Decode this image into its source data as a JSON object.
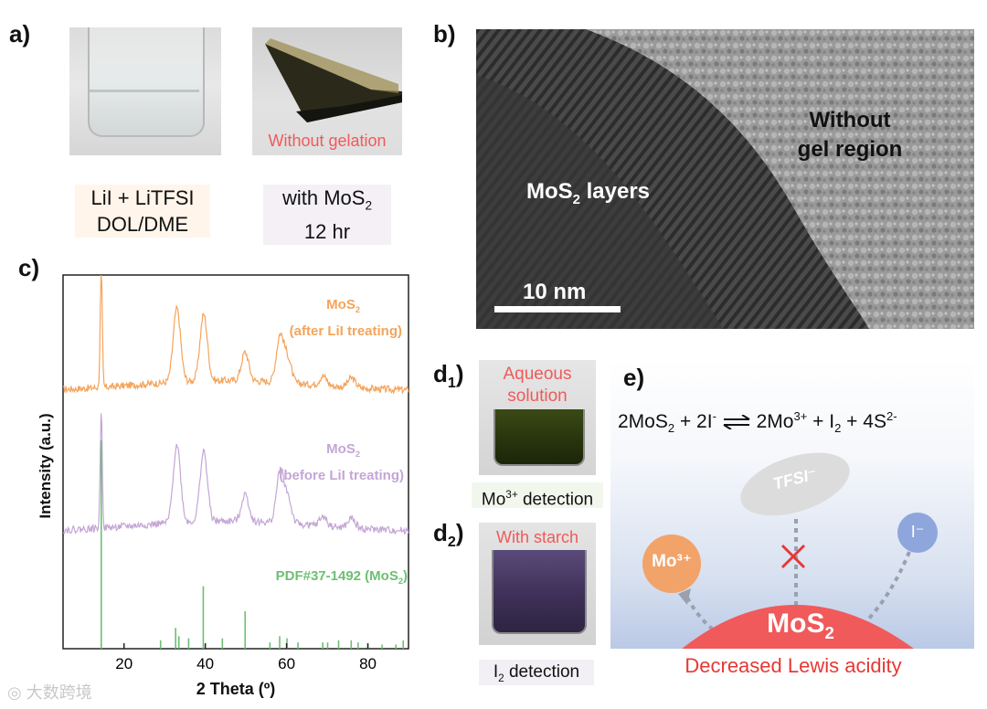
{
  "panels": {
    "a": {
      "label": "a)",
      "vial1_caption_line1": "LiI + LiTFSI",
      "vial1_caption_line2": "DOL/DME",
      "vial2_overlay": "Without gelation",
      "vial2_caption_prefix": "with MoS",
      "vial2_caption_sub": "2",
      "vial2_caption_line2": "12 hr"
    },
    "b": {
      "label": "b)",
      "region_label_line1": "Without",
      "region_label_line2": "gel region",
      "layers_prefix": "MoS",
      "layers_sub": "2",
      "layers_suffix": " layers",
      "scale_bar": "10 nm"
    },
    "c": {
      "label": "c)"
    },
    "d1": {
      "label_main": "d",
      "label_sub": "1",
      "label_close": ")",
      "overlay_line1": "Aqueous",
      "overlay_line2": "solution",
      "caption_prefix": "Mo",
      "caption_sup": "3+",
      "caption_suffix": " detection"
    },
    "d2": {
      "label_main": "d",
      "label_sub": "2",
      "label_close": ")",
      "overlay": "With starch",
      "caption_prefix": "I",
      "caption_sub": "2",
      "caption_suffix": " detection"
    },
    "e": {
      "label": "e)",
      "eq_a": "2MoS",
      "eq_a_sub": "2",
      "eq_b": " + 2I",
      "eq_b_sup": "-",
      "eq_c": "2Mo",
      "eq_c_sup": "3+",
      "eq_d": " + I",
      "eq_d_sub": "2",
      "eq_e": " + 4S",
      "eq_e_sup": "2-",
      "tfsi_label": "TFSI⁻",
      "mo_label": "Mo³⁺",
      "iodide_label": "I⁻",
      "mos2_prefix": "MoS",
      "mos2_sub": "2",
      "bottom_caption": "Decreased Lewis acidity"
    }
  },
  "watermark": "大数跨境",
  "colors": {
    "orange": "#f5a45b",
    "purple": "#c4a6d6",
    "green": "#6cc073",
    "red": "#f05a5a",
    "grey_text": "#e05a5a"
  },
  "chart_data": {
    "type": "line",
    "title": "",
    "xlabel": "2 Theta (º)",
    "ylabel": "Intensity (a.u.)",
    "xlim": [
      5,
      90
    ],
    "xticks": [
      20,
      40,
      60,
      80
    ],
    "y_ticks_shown": false,
    "series": [
      {
        "name": "MoS2 (after LiI treating)",
        "label_line1": "MoS",
        "label_sub": "2",
        "label_line2": "(after LiI treating)",
        "color": "#f5a45b",
        "peaks": [
          [
            14.4,
            10
          ],
          [
            33.0,
            6.2
          ],
          [
            39.6,
            5.6
          ],
          [
            49.8,
            2.4
          ],
          [
            58.4,
            3.9
          ],
          [
            60.3,
            2.0
          ],
          [
            69.0,
            0.8
          ],
          [
            76.0,
            0.8
          ]
        ]
      },
      {
        "name": "MoS2 (before LiI treating)",
        "label_line1": "MoS",
        "label_sub": "2",
        "label_line2": "(before LiI treating)",
        "color": "#c4a6d6",
        "peaks": [
          [
            14.4,
            10
          ],
          [
            33.0,
            6.6
          ],
          [
            39.6,
            5.9
          ],
          [
            49.8,
            2.3
          ],
          [
            58.4,
            4.3
          ],
          [
            60.3,
            2.1
          ],
          [
            69.0,
            0.8
          ],
          [
            76.0,
            0.8
          ]
        ]
      },
      {
        "name": "PDF#37-1492 (MoS2)",
        "label_prefix": "PDF#37-1492 (MoS",
        "label_sub": "2",
        "label_suffix": ")",
        "color": "#6cc073",
        "type": "reference_sticks",
        "x": [
          14.4,
          29.0,
          32.7,
          33.5,
          35.9,
          39.5,
          44.2,
          49.8,
          55.9,
          58.3,
          60.1,
          62.8,
          68.9,
          70.1,
          72.8,
          75.9,
          77.6,
          80.0,
          83.5,
          86.9,
          88.7
        ],
        "y": [
          100,
          4,
          10,
          6,
          5,
          30,
          5,
          18,
          3,
          6,
          5,
          3,
          3,
          3,
          4,
          4,
          3,
          2,
          2,
          2,
          4
        ]
      }
    ]
  }
}
